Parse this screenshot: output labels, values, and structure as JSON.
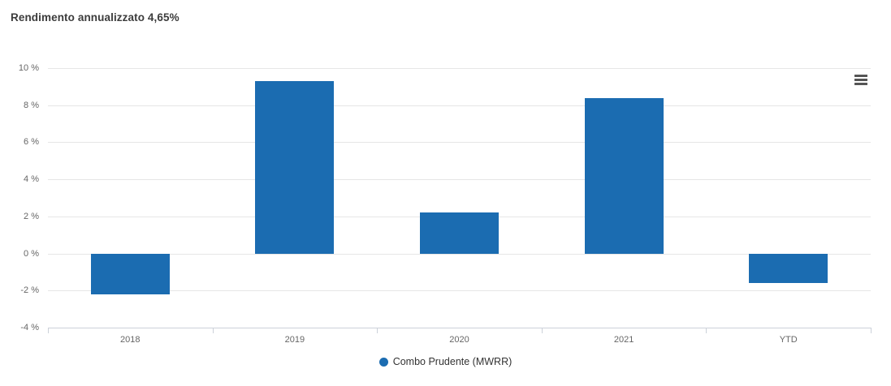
{
  "header": {
    "title": "Rendimento annualizzato 4,65%"
  },
  "toolbar": {
    "context_menu_tooltip": "Chart context menu"
  },
  "legend": {
    "label": "Combo Prudente (MWRR)",
    "marker_color": "#1b6cb1"
  },
  "colors": {
    "bar": "#1b6cb1",
    "grid": "#e6e6e6",
    "axis": "#ccd1d9",
    "axis_text": "#666666",
    "title_text": "#3c3c3c",
    "legend_text": "#333333",
    "menu_icon": "#555555",
    "background": "#ffffff"
  },
  "chart_data": {
    "type": "bar",
    "title": "Rendimento annualizzato 4,65%",
    "categories": [
      "2018",
      "2019",
      "2020",
      "2021",
      "YTD"
    ],
    "series": [
      {
        "name": "Combo Prudente (MWRR)",
        "values": [
          -2.2,
          9.3,
          2.2,
          8.4,
          -1.6
        ]
      }
    ],
    "xlabel": "",
    "ylabel": "",
    "ylim": [
      -4,
      10
    ],
    "y_tick_values": [
      10,
      8,
      6,
      4,
      2,
      0,
      -2,
      -4
    ],
    "y_ticks": [
      "10 %",
      "8 %",
      "6 %",
      "4 %",
      "2 %",
      "0 %",
      "-2 %",
      "-4 %"
    ],
    "grid": true,
    "legend_position": "bottom"
  }
}
